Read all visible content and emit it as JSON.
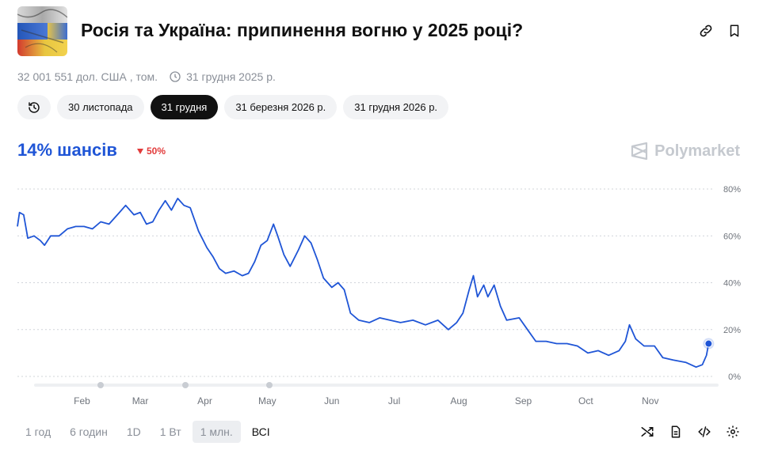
{
  "header": {
    "title": "Росія та Україна: припинення вогню у 2025 році?"
  },
  "meta": {
    "volume": "32 001 551 дол. США , том.",
    "end_date": "31 грудня 2025 р."
  },
  "date_tabs": [
    {
      "label": "30 листопада",
      "active": false
    },
    {
      "label": "31 грудня",
      "active": true
    },
    {
      "label": "31 березня 2026 р.",
      "active": false
    },
    {
      "label": "31 грудня 2026 р.",
      "active": false
    }
  ],
  "odds": {
    "chance_label": "14% шансів",
    "change": "50%",
    "direction": "down"
  },
  "brand": "Polymarket",
  "time_ranges": [
    {
      "label": "1 год",
      "active": false
    },
    {
      "label": "6 годин",
      "active": false
    },
    {
      "label": "1D",
      "active": false
    },
    {
      "label": "1 Вт",
      "active": false
    },
    {
      "label": "1 млн.",
      "active": true
    },
    {
      "label": "ВСІ",
      "active": false
    }
  ],
  "colors": {
    "line": "#1f55d6",
    "accent_down": "#e23b3b",
    "grid": "#d0d4da",
    "text_muted": "#8a8f98"
  },
  "chart_data": {
    "type": "line",
    "title": "",
    "xlabel": "",
    "ylabel": "",
    "ylim": [
      0,
      80
    ],
    "y_ticks": [
      0,
      20,
      40,
      60,
      80
    ],
    "y_tick_labels": [
      "0%",
      "20%",
      "40%",
      "60%",
      "80%"
    ],
    "x_range": [
      "2025-01-01",
      "2025-11-30"
    ],
    "x_ticks": [
      {
        "date": "2025-02-01",
        "label": "Feb"
      },
      {
        "date": "2025-03-01",
        "label": "Mar"
      },
      {
        "date": "2025-04-01",
        "label": "Apr"
      },
      {
        "date": "2025-05-01",
        "label": "May"
      },
      {
        "date": "2025-06-01",
        "label": "Jun"
      },
      {
        "date": "2025-07-01",
        "label": "Jul"
      },
      {
        "date": "2025-08-01",
        "label": "Aug"
      },
      {
        "date": "2025-09-01",
        "label": "Sep"
      },
      {
        "date": "2025-10-01",
        "label": "Oct"
      },
      {
        "date": "2025-11-01",
        "label": "Nov"
      }
    ],
    "grid": true,
    "legend": "none",
    "series": [
      {
        "values": [
          [
            "2025-01-01",
            64
          ],
          [
            "2025-01-02",
            70
          ],
          [
            "2025-01-04",
            69
          ],
          [
            "2025-01-06",
            59
          ],
          [
            "2025-01-09",
            60
          ],
          [
            "2025-01-12",
            58
          ],
          [
            "2025-01-14",
            56
          ],
          [
            "2025-01-17",
            60
          ],
          [
            "2025-01-21",
            60
          ],
          [
            "2025-01-25",
            63
          ],
          [
            "2025-01-29",
            64
          ],
          [
            "2025-02-02",
            64
          ],
          [
            "2025-02-06",
            63
          ],
          [
            "2025-02-10",
            66
          ],
          [
            "2025-02-14",
            65
          ],
          [
            "2025-02-19",
            70
          ],
          [
            "2025-02-22",
            73
          ],
          [
            "2025-02-26",
            69
          ],
          [
            "2025-03-01",
            70
          ],
          [
            "2025-03-04",
            65
          ],
          [
            "2025-03-07",
            66
          ],
          [
            "2025-03-10",
            71
          ],
          [
            "2025-03-13",
            75
          ],
          [
            "2025-03-16",
            71
          ],
          [
            "2025-03-19",
            76
          ],
          [
            "2025-03-22",
            73
          ],
          [
            "2025-03-25",
            72
          ],
          [
            "2025-03-29",
            62
          ],
          [
            "2025-04-02",
            55
          ],
          [
            "2025-04-05",
            51
          ],
          [
            "2025-04-08",
            46
          ],
          [
            "2025-04-11",
            44
          ],
          [
            "2025-04-15",
            45
          ],
          [
            "2025-04-19",
            43
          ],
          [
            "2025-04-22",
            44
          ],
          [
            "2025-04-25",
            49
          ],
          [
            "2025-04-28",
            56
          ],
          [
            "2025-05-01",
            58
          ],
          [
            "2025-05-04",
            65
          ],
          [
            "2025-05-06",
            60
          ],
          [
            "2025-05-09",
            52
          ],
          [
            "2025-05-12",
            47
          ],
          [
            "2025-05-16",
            54
          ],
          [
            "2025-05-19",
            60
          ],
          [
            "2025-05-22",
            57
          ],
          [
            "2025-05-25",
            50
          ],
          [
            "2025-05-28",
            42
          ],
          [
            "2025-06-01",
            38
          ],
          [
            "2025-06-04",
            40
          ],
          [
            "2025-06-07",
            37
          ],
          [
            "2025-06-10",
            27
          ],
          [
            "2025-06-14",
            24
          ],
          [
            "2025-06-19",
            23
          ],
          [
            "2025-06-24",
            25
          ],
          [
            "2025-06-29",
            24
          ],
          [
            "2025-07-04",
            23
          ],
          [
            "2025-07-10",
            24
          ],
          [
            "2025-07-16",
            22
          ],
          [
            "2025-07-22",
            24
          ],
          [
            "2025-07-27",
            20
          ],
          [
            "2025-07-31",
            23
          ],
          [
            "2025-08-03",
            27
          ],
          [
            "2025-08-06",
            37
          ],
          [
            "2025-08-08",
            43
          ],
          [
            "2025-08-10",
            34
          ],
          [
            "2025-08-13",
            39
          ],
          [
            "2025-08-15",
            34
          ],
          [
            "2025-08-18",
            39
          ],
          [
            "2025-08-21",
            30
          ],
          [
            "2025-08-24",
            24
          ],
          [
            "2025-08-30",
            25
          ],
          [
            "2025-09-03",
            20
          ],
          [
            "2025-09-07",
            15
          ],
          [
            "2025-09-12",
            15
          ],
          [
            "2025-09-17",
            14
          ],
          [
            "2025-09-22",
            14
          ],
          [
            "2025-09-27",
            13
          ],
          [
            "2025-10-02",
            10
          ],
          [
            "2025-10-07",
            11
          ],
          [
            "2025-10-12",
            9
          ],
          [
            "2025-10-17",
            11
          ],
          [
            "2025-10-20",
            15
          ],
          [
            "2025-10-22",
            22
          ],
          [
            "2025-10-25",
            16
          ],
          [
            "2025-10-29",
            13
          ],
          [
            "2025-11-03",
            13
          ],
          [
            "2025-11-07",
            8
          ],
          [
            "2025-11-12",
            7
          ],
          [
            "2025-11-18",
            6
          ],
          [
            "2025-11-23",
            4
          ],
          [
            "2025-11-26",
            5
          ],
          [
            "2025-11-28",
            9
          ],
          [
            "2025-11-29",
            14
          ]
        ]
      }
    ]
  }
}
